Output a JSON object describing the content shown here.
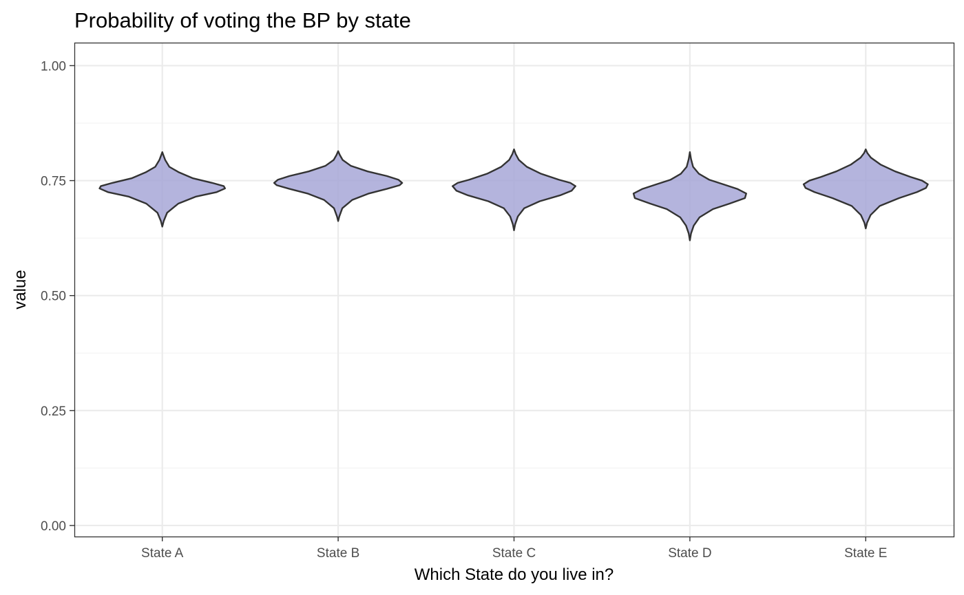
{
  "chart_data": {
    "type": "violin",
    "title": "Probability of voting the BP by state",
    "xlabel": "Which State do you live in?",
    "ylabel": "value",
    "categories": [
      "State A",
      "State B",
      "State C",
      "State D",
      "State E"
    ],
    "ylim": [
      -0.024,
      1.05
    ],
    "y_ticks": [
      {
        "value": 0,
        "label": "0.00"
      },
      {
        "value": 0.25,
        "label": "0.25"
      },
      {
        "value": 0.5,
        "label": "0.50"
      },
      {
        "value": 0.75,
        "label": "0.75"
      },
      {
        "value": 1,
        "label": "1.00"
      }
    ],
    "y_minor_ticks": [
      0.125,
      0.375,
      0.625,
      0.875
    ],
    "grid": true,
    "theme": "bw",
    "fill_color": "#a3a3d6",
    "outline_color": "#333333",
    "series": [
      {
        "category": "State A",
        "y": [
          0.65,
          0.662,
          0.68,
          0.7,
          0.715,
          0.725,
          0.733,
          0.738,
          0.745,
          0.755,
          0.768,
          0.78,
          0.795,
          0.805,
          0.812
        ],
        "width": [
          0.0,
          0.022,
          0.075,
          0.25,
          0.52,
          0.85,
          0.98,
          0.96,
          0.78,
          0.48,
          0.26,
          0.11,
          0.045,
          0.018,
          0.0
        ]
      },
      {
        "category": "State B",
        "y": [
          0.662,
          0.672,
          0.69,
          0.708,
          0.722,
          0.732,
          0.74,
          0.745,
          0.752,
          0.76,
          0.77,
          0.782,
          0.795,
          0.806,
          0.814
        ],
        "width": [
          0.0,
          0.018,
          0.065,
          0.22,
          0.48,
          0.76,
          0.96,
          1.0,
          0.94,
          0.76,
          0.46,
          0.2,
          0.07,
          0.025,
          0.0
        ]
      },
      {
        "category": "State C",
        "y": [
          0.642,
          0.655,
          0.672,
          0.69,
          0.705,
          0.718,
          0.728,
          0.738,
          0.745,
          0.752,
          0.765,
          0.78,
          0.795,
          0.808,
          0.818
        ],
        "width": [
          0.0,
          0.018,
          0.06,
          0.16,
          0.4,
          0.72,
          0.9,
          0.96,
          0.88,
          0.7,
          0.42,
          0.2,
          0.075,
          0.025,
          0.0
        ]
      },
      {
        "category": "State D",
        "y": [
          0.62,
          0.635,
          0.652,
          0.67,
          0.688,
          0.7,
          0.712,
          0.722,
          0.732,
          0.742,
          0.752,
          0.765,
          0.78,
          0.797,
          0.812
        ],
        "width": [
          0.0,
          0.018,
          0.06,
          0.15,
          0.36,
          0.62,
          0.86,
          0.88,
          0.74,
          0.52,
          0.3,
          0.14,
          0.05,
          0.018,
          0.0
        ]
      },
      {
        "category": "State E",
        "y": [
          0.646,
          0.658,
          0.675,
          0.695,
          0.712,
          0.725,
          0.734,
          0.742,
          0.75,
          0.758,
          0.77,
          0.785,
          0.8,
          0.81,
          0.818
        ],
        "width": [
          0.0,
          0.02,
          0.075,
          0.22,
          0.52,
          0.8,
          0.94,
          0.97,
          0.88,
          0.7,
          0.46,
          0.23,
          0.08,
          0.025,
          0.0
        ]
      }
    ]
  }
}
